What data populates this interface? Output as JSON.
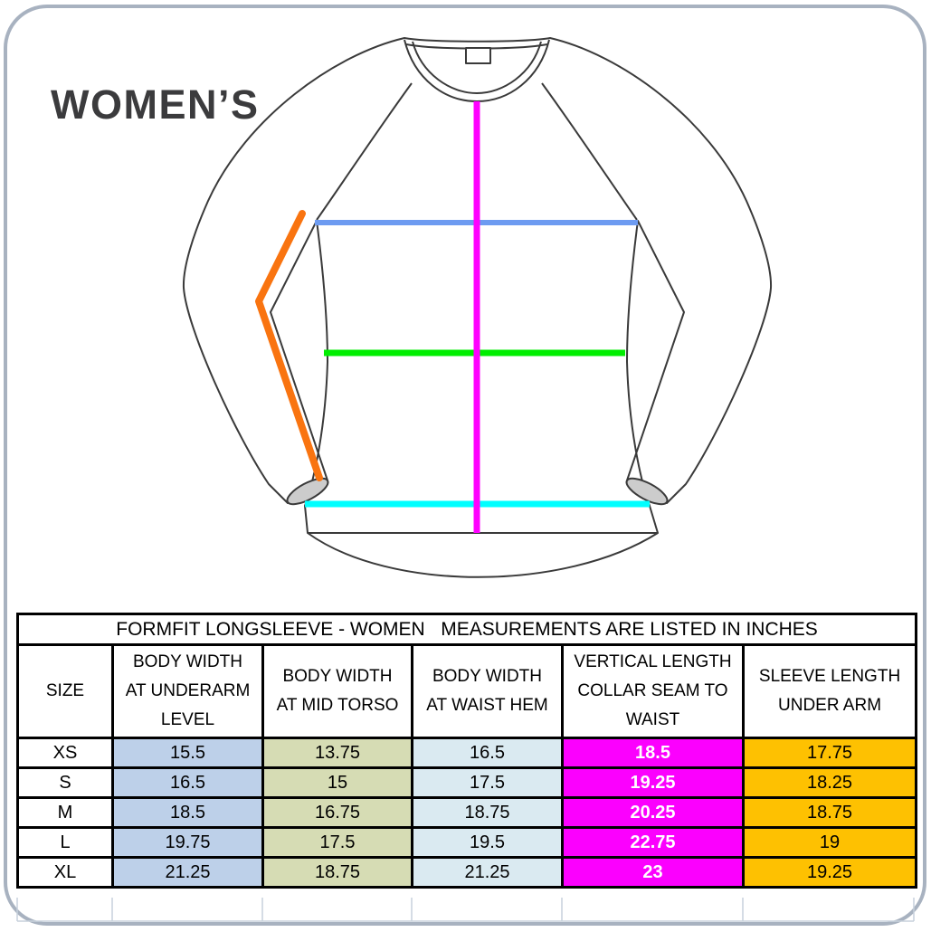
{
  "page": {
    "heading": "WOMEN’S",
    "heading_color": "#3b3b3d",
    "border_color": "#a8b2c0"
  },
  "diagram": {
    "colors": {
      "outline": "#3a3a3a",
      "cuff": "#cccccc",
      "chest_line": "#6d9bf1",
      "mid_torso_line": "#00ee00",
      "waist_hem_line": "#00ffff",
      "vertical_line": "#ff00ff",
      "sleeve_line": "#f97410",
      "ghost_grid": "#c7d1dc"
    }
  },
  "table": {
    "title": "FORMFIT LONGSLEEVE - WOMEN   MEASUREMENTS ARE LISTED IN INCHES",
    "columns": [
      {
        "label": "SIZE",
        "fill": "#ffffff"
      },
      {
        "label": "BODY WIDTH\nAT UNDERARM\nLEVEL",
        "fill": "#bdd0e9"
      },
      {
        "label": "BODY WIDTH\nAT MID TORSO",
        "fill": "#d6dcb4"
      },
      {
        "label": "BODY WIDTH\nAT WAIST HEM",
        "fill": "#daeaf1"
      },
      {
        "label": "VERTICAL LENGTH\nCOLLAR SEAM TO\nWAIST",
        "fill": "#fb00fe",
        "text": "#ffffff"
      },
      {
        "label": "SLEEVE LENGTH\nUNDER ARM",
        "fill": "#fec101"
      }
    ],
    "rows": [
      {
        "size": "XS",
        "values": [
          "15.5",
          "13.75",
          "16.5",
          "18.5",
          "17.75"
        ]
      },
      {
        "size": "S",
        "values": [
          "16.5",
          "15",
          "17.5",
          "19.25",
          "18.25"
        ]
      },
      {
        "size": "M",
        "values": [
          "18.5",
          "16.75",
          "18.75",
          "20.25",
          "18.75"
        ]
      },
      {
        "size": "L",
        "values": [
          "19.75",
          "17.5",
          "19.5",
          "22.75",
          "19"
        ]
      },
      {
        "size": "XL",
        "values": [
          "21.25",
          "18.75",
          "21.25",
          "23",
          "19.25"
        ]
      }
    ]
  }
}
